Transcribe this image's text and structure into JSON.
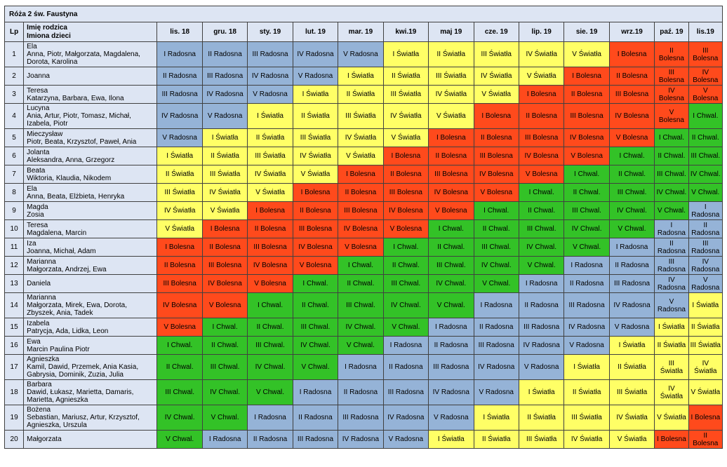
{
  "title": "Róża 2 św. Faustyna",
  "headers": {
    "lp": "Lp",
    "name_line1": "Imię rodzica",
    "name_line2": "Imiona dzieci",
    "months": [
      "lis. 18",
      "gru. 18",
      "sty. 19",
      "lut. 19",
      "mar. 19",
      "kwi.19",
      "maj 19",
      "cze. 19",
      "lip. 19",
      "sie. 19",
      "wrz.19",
      "paź. 19",
      "lis.19"
    ]
  },
  "colors": {
    "radosna": "#95b3d7",
    "swiatla": "#ffff66",
    "bolesna": "#ff4a1c",
    "chwal": "#33c227",
    "header": "#dde5f3"
  },
  "rows": [
    {
      "lp": "1",
      "parent": "Ela",
      "children": "Anna, Piotr, Małgorzata, Magdalena, Dorota, Karolina",
      "cells": [
        "I Radosna",
        "II Radosna",
        "III Radosna",
        "IV Radosna",
        "V Radosna",
        "I Światła",
        "II Światła",
        "III Światła",
        "IV Światła",
        "V Światła",
        "I Bolesna",
        "II Bolesna",
        "III Bolesna"
      ]
    },
    {
      "lp": "2",
      "parent": "Joanna",
      "children": "",
      "cells": [
        "II Radosna",
        "III Radosna",
        "IV Radosna",
        "V Radosna",
        "I Światła",
        "II Światła",
        "III Światła",
        "IV Światła",
        "V Światła",
        "I Bolesna",
        "II Bolesna",
        "III Bolesna",
        "IV Bolesna"
      ]
    },
    {
      "lp": "3",
      "parent": "Teresa",
      "children": "Katarzyna, Barbara, Ewa, Ilona",
      "cells": [
        "III Radosna",
        "IV Radosna",
        "V Radosna",
        "I Światła",
        "II Światła",
        "III Światła",
        "IV Światła",
        "V Światła",
        "I Bolesna",
        "II Bolesna",
        "III Bolesna",
        "IV Bolesna",
        "V Bolesna"
      ]
    },
    {
      "lp": "4",
      "parent": "Lucyna",
      "children": "Ania, Artur, Piotr, Tomasz, Michał, Izabela, Piotr",
      "cells": [
        "IV Radosna",
        "V Radosna",
        "I Światła",
        "II Światła",
        "III Światła",
        "IV Światła",
        "V Światła",
        "I Bolesna",
        "II Bolesna",
        "III Bolesna",
        "IV Bolesna",
        "V Bolesna",
        "I Chwal."
      ]
    },
    {
      "lp": "5",
      "parent": "Mieczysław",
      "children": "Piotr, Beata, Krzysztof, Paweł, Ania",
      "cells": [
        "V Radosna",
        "I Światła",
        "II Światła",
        "III Światła",
        "IV Światła",
        "V Światła",
        "I Bolesna",
        "II Bolesna",
        "III Bolesna",
        "IV Bolesna",
        "V Bolesna",
        "I Chwal.",
        "II Chwal."
      ]
    },
    {
      "lp": "6",
      "parent": "Jolanta",
      "children": "Aleksandra, Anna, Grzegorz",
      "cells": [
        "I Światła",
        "II Światła",
        "III Światła",
        "IV Światła",
        "V Światła",
        "I Bolesna",
        "II Bolesna",
        "III Bolesna",
        "IV Bolesna",
        "V Bolesna",
        "I Chwal.",
        "II Chwal.",
        "III Chwal."
      ]
    },
    {
      "lp": "7",
      "parent": "Beata",
      "children": "Wiktoria, Klaudia, Nikodem",
      "cells": [
        "II Światła",
        "III Światła",
        "IV Światła",
        "V Światła",
        "I Bolesna",
        "II Bolesna",
        "III Bolesna",
        "IV Bolesna",
        "V Bolesna",
        "I Chwal.",
        "II Chwal.",
        "III Chwal.",
        "IV Chwal."
      ]
    },
    {
      "lp": "8",
      "parent": "Ela",
      "children": "Anna, Beata, Elżbieta, Henryka",
      "cells": [
        "III Światła",
        "IV Światła",
        "V Światła",
        "I Bolesna",
        "II Bolesna",
        "III Bolesna",
        "IV Bolesna",
        "V Bolesna",
        "I Chwal.",
        "II Chwal.",
        "III Chwal.",
        "IV Chwal.",
        "V Chwal."
      ]
    },
    {
      "lp": "9",
      "parent": "Magda",
      "children": "Zosia",
      "cells": [
        "IV Światła",
        "V Światła",
        "I Bolesna",
        "II Bolesna",
        "III Bolesna",
        "IV Bolesna",
        "V Bolesna",
        "I Chwal.",
        "II Chwal.",
        "III Chwal.",
        "IV Chwal.",
        "V Chwal.",
        "I Radosna"
      ]
    },
    {
      "lp": "10",
      "parent": "Teresa",
      "children": "Magdalena, Marcin",
      "cells": [
        "V Światła",
        "I Bolesna",
        "II Bolesna",
        "III Bolesna",
        "IV Bolesna",
        "V Bolesna",
        "I Chwal.",
        "II Chwal.",
        "III Chwal.",
        "IV Chwal.",
        "V Chwal.",
        "I Radosna",
        "II Radosna"
      ]
    },
    {
      "lp": "11",
      "parent": "Iza",
      "children": "Joanna, Michał, Adam",
      "cells": [
        "I Bolesna",
        "II Bolesna",
        "III Bolesna",
        "IV Bolesna",
        "V Bolesna",
        "I Chwal.",
        "II Chwal.",
        "III Chwal.",
        "IV Chwal.",
        "V Chwal.",
        "I Radosna",
        "II Radosna",
        "III Radosna"
      ]
    },
    {
      "lp": "12",
      "parent": "Marianna",
      "children": "Małgorzata, Andrzej, Ewa",
      "cells": [
        "II Bolesna",
        "III Bolesna",
        "IV Bolesna",
        "V Bolesna",
        "I Chwal.",
        "II Chwal.",
        "III Chwal.",
        "IV Chwal.",
        "V Chwal.",
        "I Radosna",
        "II Radosna",
        "III Radosna",
        "IV Radosna"
      ]
    },
    {
      "lp": "13",
      "parent": "Daniela",
      "children": "",
      "cells": [
        "III Bolesna",
        "IV Bolesna",
        "V Bolesna",
        "I Chwal.",
        "II Chwal.",
        "III Chwal.",
        "IV Chwal.",
        "V Chwal.",
        "I Radosna",
        "II Radosna",
        "III Radosna",
        "IV Radosna",
        "V Radosna"
      ]
    },
    {
      "lp": "14",
      "parent": "Marianna",
      "children": "Małgorzata, Mirek, Ewa, Dorota, Zbyszek, Ania, Tadek",
      "cells": [
        "IV Bolesna",
        "V Bolesna",
        "I Chwal.",
        "II Chwal.",
        "III Chwal.",
        "IV Chwal.",
        "V Chwal.",
        "I Radosna",
        "II Radosna",
        "III Radosna",
        "IV Radosna",
        "V Radosna",
        "I Światła"
      ]
    },
    {
      "lp": "15",
      "parent": "Izabela",
      "children": "Patrycja, Ada, Lidka, Leon",
      "cells": [
        "V Bolesna",
        "I Chwal.",
        "II Chwal.",
        "III Chwal.",
        "IV Chwal.",
        "V Chwal.",
        "I Radosna",
        "II Radosna",
        "III Radosna",
        "IV Radosna",
        "V Radosna",
        "I Światła",
        "II Światła"
      ]
    },
    {
      "lp": "16",
      "parent": "Ewa",
      "children": "Marcin Paulina Piotr",
      "cells": [
        "I Chwal.",
        "II Chwal.",
        "III Chwal.",
        "IV Chwal.",
        "V Chwal.",
        "I Radosna",
        "II Radosna",
        "III Radosna",
        "IV Radosna",
        "V Radosna",
        "I Światła",
        "II Światła",
        "III Światła"
      ]
    },
    {
      "lp": "17",
      "parent": "Agnieszka",
      "children": "Kamil, Dawid, Przemek, Ania Kasia, Gabrysia, Dominik, Zuzia, Julia",
      "cells": [
        "II Chwal.",
        "III Chwal.",
        "IV Chwal.",
        "V Chwal.",
        "I Radosna",
        "II Radosna",
        "III Radosna",
        "IV Radosna",
        "V Radosna",
        "I Światła",
        "II Światła",
        "III Światła",
        "IV Światła"
      ]
    },
    {
      "lp": "18",
      "parent": "Barbara",
      "children": "Dawid, Łukasz, Marietta, Damaris, Marietta, Agnieszka",
      "cells": [
        "III Chwal.",
        "IV Chwal.",
        "V Chwal.",
        "I Radosna",
        "II Radosna",
        "III Radosna",
        "IV Radosna",
        "V Radosna",
        "I Światła",
        "II Światła",
        "III Światła",
        "IV Światła",
        "V Światła"
      ]
    },
    {
      "lp": "19",
      "parent": "Bożena",
      "children": "Sebastian, Mariusz, Artur, Krzysztof, Agnieszka, Urszula",
      "cells": [
        "IV Chwal.",
        "V Chwal.",
        "I Radosna",
        "II Radosna",
        "III Radosna",
        "IV Radosna",
        "V Radosna",
        "I Światła",
        "II Światła",
        "III Światła",
        "IV Światła",
        "V Światła",
        "I Bolesna"
      ]
    },
    {
      "lp": "20",
      "parent": "Małgorzata",
      "children": "",
      "cells": [
        "V Chwal.",
        "I Radosna",
        "II Radosna",
        "III Radosna",
        "IV Radosna",
        "V Radosna",
        "I Światła",
        "II Światła",
        "III Światła",
        "IV Światła",
        "V Światła",
        "I Bolesna",
        "II Bolesna"
      ]
    }
  ]
}
